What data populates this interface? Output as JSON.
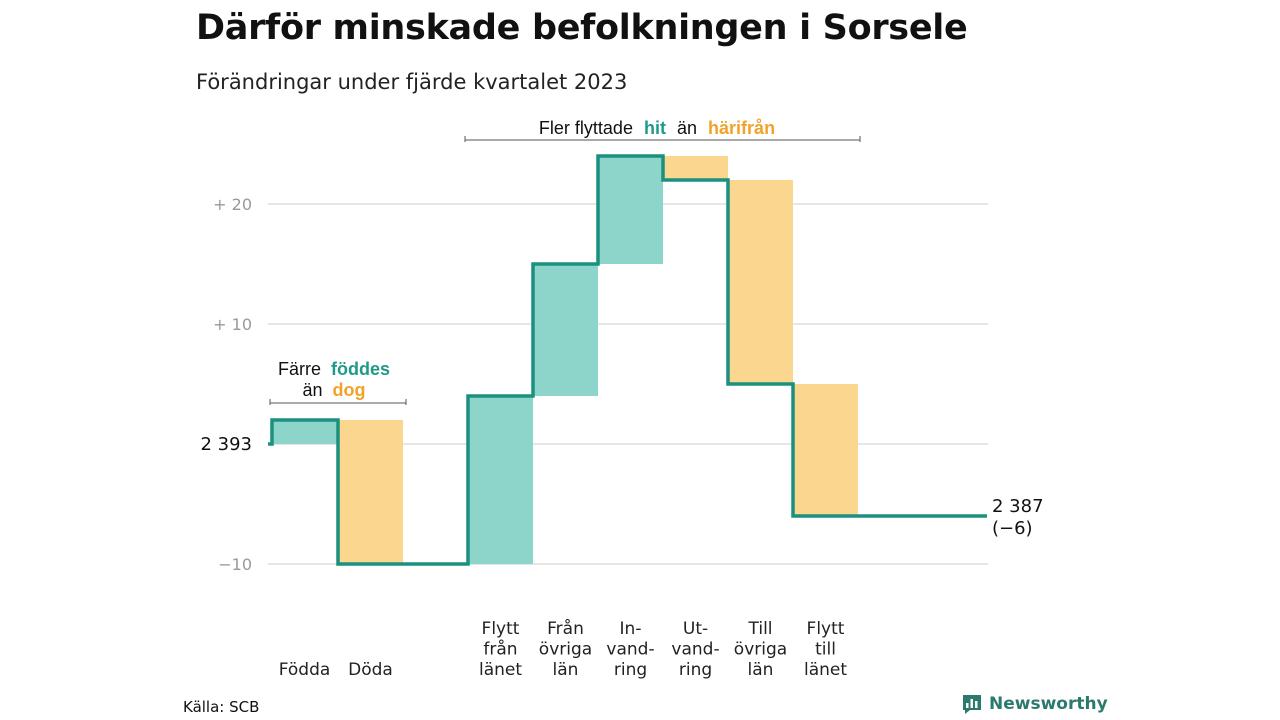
{
  "title": "Därför minskade befolkningen i Sorsele",
  "subtitle": "Förändringar under fjärde kvartalet 2023",
  "source": "Källa: SCB",
  "logo": {
    "text": "Newsworthy",
    "icon": "bar-chart-speech-icon"
  },
  "colors": {
    "inflow": "#8dd5cb",
    "outflow": "#fbd68f",
    "line": "#1a917f",
    "grid": "#dddddd"
  },
  "annotations": {
    "births": {
      "line1": "Färre",
      "line2_a": "föddes",
      "line3_a": "än",
      "line3_b": "dog"
    },
    "moves": {
      "a": "Fler flyttade",
      "b": "hit",
      "c": "än",
      "d": "härifrån"
    }
  },
  "chart_data": {
    "type": "waterfall",
    "title": "Därför minskade befolkningen i Sorsele",
    "subtitle": "Förändringar under fjärde kvartalet 2023",
    "start_value": 2393,
    "end_value": 2387,
    "end_label": [
      "2 387",
      "(−6)"
    ],
    "y_axis": {
      "range": [
        -10,
        24
      ],
      "ticks": [
        {
          "value": 20,
          "label": "+  20"
        },
        {
          "value": 10,
          "label": "+  10"
        },
        {
          "value": 0,
          "label": "2  393"
        },
        {
          "value": -10,
          "label": "−10"
        }
      ]
    },
    "steps": [
      {
        "category": [
          "Födda"
        ],
        "change": 2,
        "type": "in"
      },
      {
        "category": [
          "Döda"
        ],
        "change": -12,
        "type": "out"
      },
      {
        "category": [
          "Flytt",
          "från",
          "länet"
        ],
        "change": 14,
        "type": "in"
      },
      {
        "category": [
          "Från",
          "övriga",
          "län"
        ],
        "change": 11,
        "type": "in"
      },
      {
        "category": [
          "In-",
          "vand-",
          "ring"
        ],
        "change": 9,
        "type": "in"
      },
      {
        "category": [
          "Ut-",
          "vand-",
          "ring"
        ],
        "change": -2,
        "type": "out"
      },
      {
        "category": [
          "Till",
          "övriga",
          "län"
        ],
        "change": -17,
        "type": "out"
      },
      {
        "category": [
          "Flytt",
          "till",
          "länet"
        ],
        "change": -11,
        "type": "out"
      }
    ],
    "grid": true
  }
}
